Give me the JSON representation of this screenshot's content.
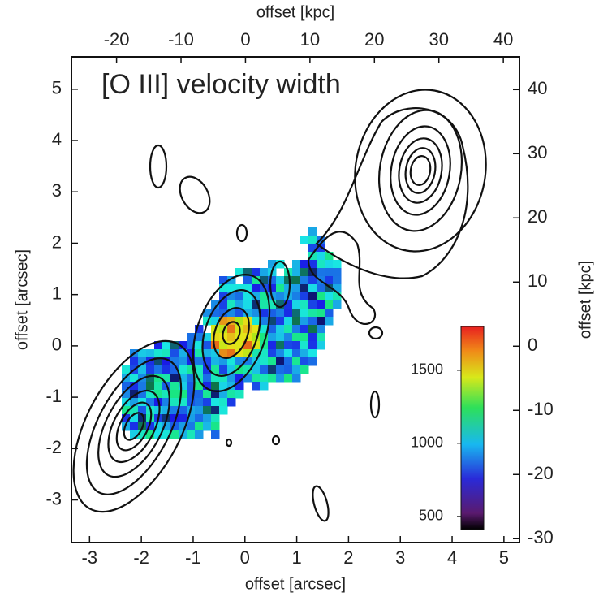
{
  "chart_data": {
    "type": "map",
    "title": "[O III] velocity width",
    "xlabel": "offset [arcsec]",
    "ylabel": "offset [arcsec]",
    "x2label": "offset [kpc]",
    "y2label": "offset [kpc]",
    "xlim": [
      -3.35,
      5.3
    ],
    "xticks": [
      -3,
      -2,
      -1,
      0,
      1,
      2,
      3,
      4,
      5
    ],
    "ylim": [
      -3.83,
      5.63
    ],
    "yticks": [
      -3,
      -2,
      -1,
      0,
      1,
      2,
      3,
      4,
      5
    ],
    "x2lim": [
      -27,
      42.5
    ],
    "x2ticks": [
      -20,
      -10,
      0,
      10,
      20,
      30,
      40
    ],
    "y2lim": [
      -30.6,
      45.1
    ],
    "y2ticks": [
      -30,
      -20,
      -10,
      0,
      10,
      20,
      30,
      40
    ],
    "colorbar": {
      "lim": [
        410,
        1800
      ],
      "ticks": [
        500,
        1000,
        1500
      ]
    }
  }
}
